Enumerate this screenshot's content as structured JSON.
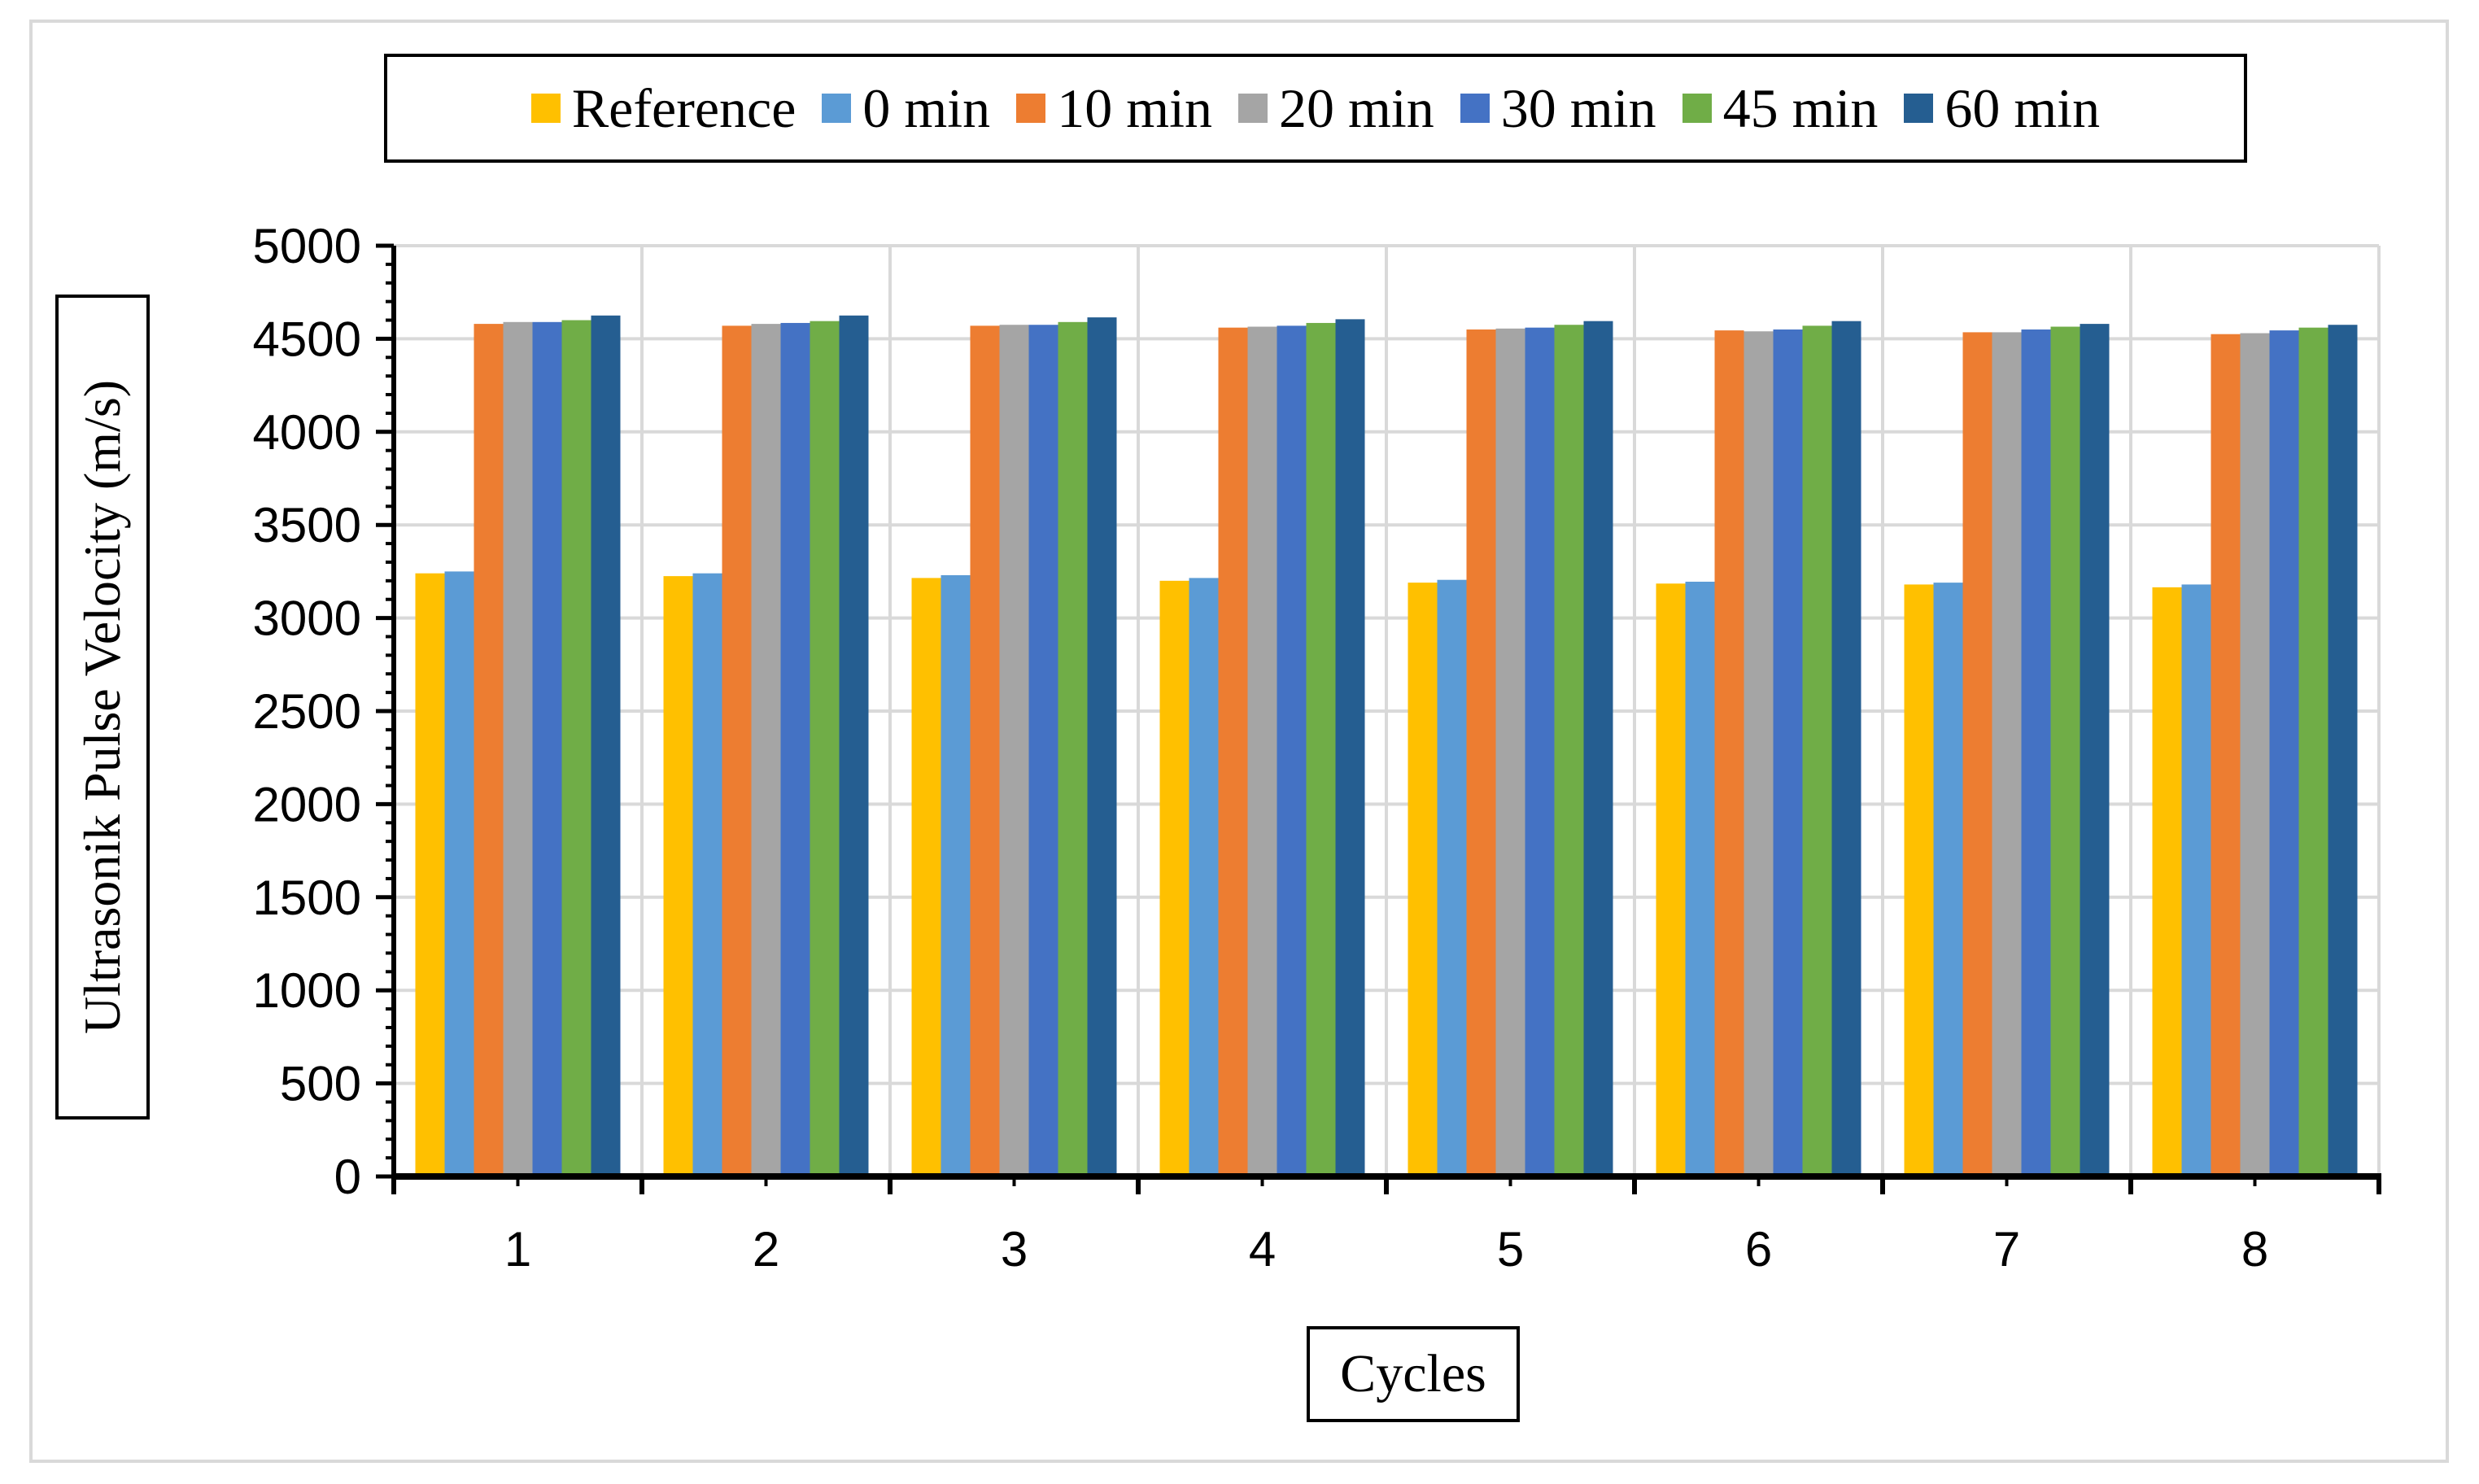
{
  "chart_data": {
    "type": "bar",
    "title": "",
    "xlabel": "Cycles",
    "ylabel": "Ultrasonik Pulse Velocity (m/s)",
    "ylim": [
      0,
      5000
    ],
    "yticks": [
      "0",
      "500",
      "1000",
      "1500",
      "2000",
      "2500",
      "3000",
      "3500",
      "4000",
      "4500",
      "5000"
    ],
    "grid": true,
    "legend_position": "top",
    "categories": [
      "1",
      "2",
      "3",
      "4",
      "5",
      "6",
      "7",
      "8"
    ],
    "series": [
      {
        "name": "Reference",
        "color": "#FFC000",
        "values": [
          3240,
          3225,
          3215,
          3200,
          3190,
          3185,
          3180,
          3165
        ]
      },
      {
        "name": "0 min",
        "color": "#5B9BD5",
        "values": [
          3250,
          3240,
          3230,
          3215,
          3205,
          3195,
          3190,
          3180
        ]
      },
      {
        "name": "10 min",
        "color": "#ED7D31",
        "values": [
          4580,
          4570,
          4570,
          4560,
          4550,
          4545,
          4535,
          4525
        ]
      },
      {
        "name": "20 min",
        "color": "#A5A5A5",
        "values": [
          4590,
          4580,
          4575,
          4565,
          4555,
          4540,
          4535,
          4530
        ]
      },
      {
        "name": "30 min",
        "color": "#4472C4",
        "values": [
          4590,
          4585,
          4575,
          4570,
          4560,
          4550,
          4550,
          4545
        ]
      },
      {
        "name": "45 min",
        "color": "#70AD47",
        "values": [
          4600,
          4595,
          4590,
          4585,
          4575,
          4570,
          4565,
          4560
        ]
      },
      {
        "name": "60 min",
        "color": "#255E91",
        "values": [
          4625,
          4625,
          4615,
          4605,
          4595,
          4595,
          4580,
          4575
        ]
      }
    ]
  }
}
